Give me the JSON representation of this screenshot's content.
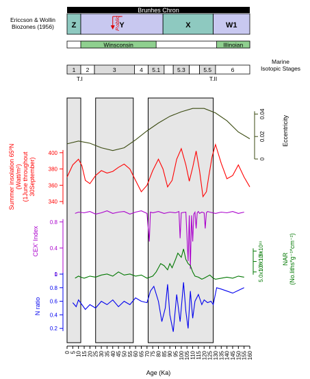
{
  "chart_data": {
    "type": "line",
    "xlabel": "Age (Ka)",
    "xlim": [
      0,
      160
    ],
    "x_ticks": [
      "0",
      "5",
      "10",
      "15",
      "20",
      "25",
      "30",
      "35",
      "40",
      "45",
      "50",
      "55",
      "60",
      "65",
      "70",
      "75",
      "80",
      "85",
      "90",
      "95",
      "100",
      "105",
      "110",
      "115",
      "120",
      "125",
      "130",
      "135",
      "140",
      "145",
      "150",
      "155",
      "160"
    ],
    "shaded_intervals": [
      [
        0,
        12
      ],
      [
        25,
        58
      ],
      [
        71,
        128
      ]
    ],
    "header": {
      "chron": "Brunhes Chron",
      "biozone_label": "Ericcson & Wollin\nBiozones (1956)",
      "biozones": [
        {
          "label": "Z",
          "start": 0,
          "end": 12,
          "color": "#8ec9c0"
        },
        {
          "label": "Y",
          "start": 12,
          "end": 84,
          "color": "#c8c8f0"
        },
        {
          "label": "X",
          "start": 84,
          "end": 128,
          "color": "#8ec9c0"
        },
        {
          "label": "W1",
          "start": 128,
          "end": 160,
          "color": "#c8c8f0"
        }
      ],
      "pobliq_label": "P.obliq",
      "pobliq_age": 40,
      "glacials": [
        {
          "label": "Winsconsin",
          "start": 12,
          "end": 78,
          "color": "#8fd08f"
        },
        {
          "label": "Illinoian",
          "start": 131,
          "end": 160,
          "color": "#8fd08f"
        }
      ],
      "isotope_label": "Marine\nIsotopic Stages",
      "isotope_stages": [
        {
          "label": "1",
          "start": 0,
          "end": 12
        },
        {
          "label": "2",
          "start": 12,
          "end": 24
        },
        {
          "label": "3",
          "start": 24,
          "end": 59
        },
        {
          "label": "4",
          "start": 59,
          "end": 71
        },
        {
          "label": "5.1",
          "start": 71,
          "end": 85
        },
        {
          "label": "",
          "start": 85,
          "end": 93
        },
        {
          "label": "5.3",
          "start": 93,
          "end": 107
        },
        {
          "label": "",
          "start": 107,
          "end": 116
        },
        {
          "label": "5.5",
          "start": 116,
          "end": 130
        },
        {
          "label": "6",
          "start": 130,
          "end": 160
        }
      ],
      "terminations": [
        {
          "label": "T.I",
          "age": 11
        },
        {
          "label": "T.II",
          "age": 128
        }
      ]
    },
    "panels": [
      {
        "name": "Eccentricity",
        "ylabel": "Eccentricity",
        "color": "#3a4a10",
        "ylim": [
          0,
          0.05
        ],
        "yticks": [
          "0",
          "0.02",
          "0.04"
        ],
        "ytick_values": [
          0,
          0.02,
          0.04
        ],
        "axis_side": "right",
        "x": [
          0,
          10,
          20,
          30,
          40,
          50,
          60,
          70,
          80,
          90,
          100,
          110,
          120,
          130,
          140,
          150,
          160
        ],
        "values": [
          0.0135,
          0.016,
          0.014,
          0.01,
          0.0075,
          0.01,
          0.017,
          0.025,
          0.032,
          0.038,
          0.042,
          0.045,
          0.045,
          0.041,
          0.034,
          0.024,
          0.018
        ]
      },
      {
        "name": "Summer insolation 65N",
        "ylabel": "Summer insolation 65ºN\n(Watt/m²)\n(1June throughout\n30September)",
        "color": "#ff0000",
        "ylim": [
          335,
          415
        ],
        "yticks": [
          "340",
          "360",
          "380",
          "400"
        ],
        "ytick_values": [
          340,
          360,
          380,
          400
        ],
        "axis_side": "left",
        "x": [
          0,
          5,
          10,
          13,
          16,
          20,
          25,
          30,
          35,
          40,
          45,
          50,
          55,
          60,
          65,
          70,
          75,
          80,
          84,
          88,
          92,
          96,
          100,
          104,
          107,
          110,
          113,
          116,
          119,
          122,
          124,
          127,
          130,
          135,
          140,
          145,
          150,
          155,
          160
        ],
        "values": [
          370,
          385,
          392,
          384,
          366,
          362,
          372,
          378,
          375,
          377,
          382,
          386,
          380,
          366,
          352,
          360,
          378,
          392,
          380,
          358,
          366,
          392,
          405,
          385,
          365,
          382,
          402,
          378,
          346,
          352,
          370,
          395,
          410,
          387,
          368,
          372,
          385,
          370,
          358
        ]
      },
      {
        "name": "CEX' Index",
        "ylabel": "CEX' Index",
        "color": "#aa00cc",
        "ylim": [
          0,
          1.05
        ],
        "yticks": [
          "0",
          "0.4",
          "0.8"
        ],
        "ytick_values": [
          0,
          0.4,
          0.8
        ],
        "axis_side": "left",
        "x": [
          7,
          10,
          15,
          20,
          25,
          30,
          35,
          40,
          45,
          50,
          55,
          60,
          65,
          70,
          72,
          73,
          75,
          80,
          85,
          90,
          95,
          98,
          99,
          100,
          104,
          106,
          107,
          108,
          109,
          110,
          111,
          112,
          113,
          114,
          115,
          116,
          118,
          120,
          121,
          122,
          123,
          125,
          130,
          135,
          140,
          145,
          150,
          155
        ],
        "values": [
          0.93,
          0.95,
          0.94,
          0.96,
          0.92,
          0.94,
          0.97,
          0.93,
          0.95,
          0.96,
          0.92,
          0.95,
          0.97,
          0.93,
          0.5,
          0.95,
          0.94,
          0.96,
          0.93,
          0.95,
          0.94,
          0.96,
          0.55,
          0.94,
          0.95,
          0.2,
          0.9,
          0.08,
          0.9,
          0.5,
          0.92,
          0.95,
          0.7,
          0.94,
          0.96,
          0.93,
          0.95,
          0.94,
          0.7,
          0.94,
          0.96,
          0.95,
          0.93,
          0.95,
          0.94,
          0.96,
          0.93,
          0.95
        ]
      },
      {
        "name": "NAR",
        "ylabel": "NAR\n(No.liths*g⁻¹*cm⁻²)",
        "color": "#007700",
        "ylim": [
          0,
          2.2
        ],
        "yticks": [
          "5.0x10¹⁰",
          "1.0x10¹¹",
          "1.5x10¹¹"
        ],
        "ytick_values": [
          0.5,
          1.0,
          1.5
        ],
        "axis_side": "right",
        "x": [
          7,
          10,
          12,
          15,
          20,
          25,
          30,
          35,
          40,
          45,
          50,
          55,
          60,
          65,
          70,
          75,
          78,
          80,
          82,
          85,
          88,
          90,
          92,
          95,
          97,
          100,
          102,
          104,
          106,
          108,
          110,
          112,
          115,
          118,
          120,
          125,
          128,
          130,
          135,
          140,
          145,
          150,
          155
        ],
        "values": [
          0.2,
          0.3,
          0.25,
          0.2,
          0.3,
          0.25,
          0.35,
          0.4,
          0.3,
          0.5,
          0.35,
          0.4,
          0.3,
          0.35,
          0.2,
          0.3,
          0.5,
          0.7,
          0.9,
          0.8,
          0.6,
          0.9,
          0.7,
          1.1,
          1.4,
          1.2,
          1.6,
          1.1,
          0.9,
          0.8,
          0.5,
          0.3,
          0.25,
          0.15,
          0.2,
          0.35,
          0.2,
          0.15,
          0.2,
          0.25,
          0.2,
          0.3,
          0.25
        ]
      },
      {
        "name": "N ratio",
        "ylabel": "N ratio",
        "color": "#0000ee",
        "ylim": [
          0.02,
          1.02
        ],
        "yticks": [
          "0.2",
          "0.4",
          "0.6",
          "0.8",
          "1"
        ],
        "ytick_values": [
          0.2,
          0.4,
          0.6,
          0.8,
          1.0
        ],
        "axis_side": "left",
        "x": [
          5,
          8,
          10,
          13,
          16,
          20,
          25,
          30,
          35,
          40,
          45,
          50,
          55,
          60,
          65,
          70,
          73,
          76,
          80,
          83,
          86,
          88,
          90,
          93,
          96,
          99,
          102,
          104,
          106,
          108,
          110,
          112,
          115,
          118,
          120,
          123,
          126,
          128,
          131,
          135,
          140,
          145,
          150,
          155
        ],
        "values": [
          0.58,
          0.52,
          0.62,
          0.55,
          0.48,
          0.55,
          0.5,
          0.6,
          0.55,
          0.62,
          0.52,
          0.6,
          0.55,
          0.65,
          0.6,
          0.58,
          0.75,
          0.82,
          0.6,
          0.3,
          0.5,
          0.85,
          0.4,
          0.15,
          0.7,
          0.3,
          0.88,
          0.45,
          0.2,
          0.75,
          0.35,
          0.6,
          0.7,
          0.55,
          0.62,
          0.58,
          0.6,
          0.55,
          0.8,
          0.78,
          0.75,
          0.72,
          0.76,
          0.8
        ]
      }
    ]
  }
}
